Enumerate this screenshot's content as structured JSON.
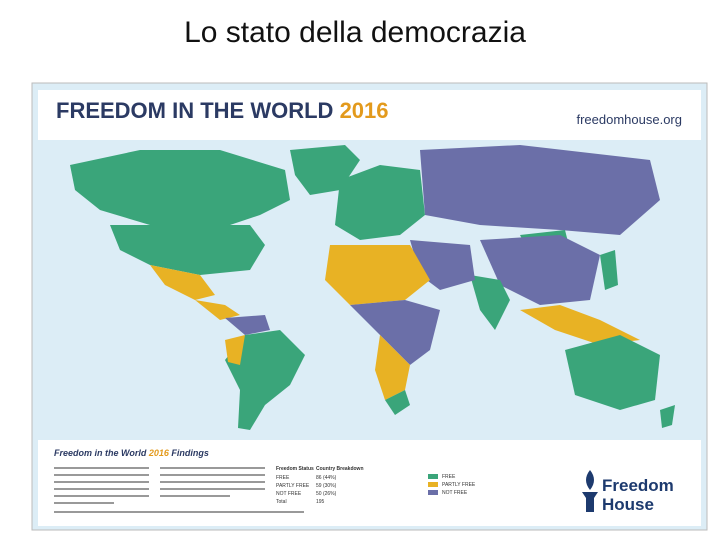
{
  "slide_title": "Lo stato della democrazia",
  "header": {
    "title": "FREEDOM IN THE WORLD",
    "year": "2016",
    "website": "freedomhouse.org"
  },
  "findings": {
    "title": "Freedom in the World",
    "year": "2016",
    "suffix": "Findings",
    "table": {
      "columns": [
        "Freedom Status",
        "Country Breakdown"
      ],
      "rows": [
        [
          "FREE",
          "86 (44%)"
        ],
        [
          "PARTLY FREE",
          "59 (30%)"
        ],
        [
          "NOT FREE",
          "50 (26%)"
        ],
        [
          "Total",
          "195"
        ]
      ]
    }
  },
  "legend": [
    "FREE",
    "PARTLY FREE",
    "NOT FREE"
  ],
  "logo": [
    "Freedom",
    "House"
  ]
}
